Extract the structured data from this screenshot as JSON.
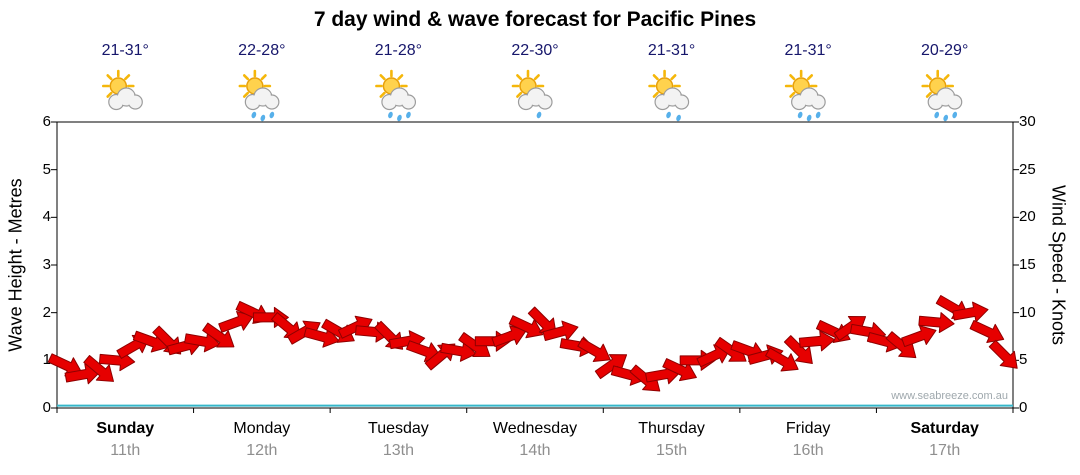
{
  "title": "7 day wind & wave forecast for Pacific Pines",
  "watermark": "www.seabreeze.com.au",
  "days": [
    {
      "name": "Sunday",
      "date": "11th",
      "temp": "21-31°",
      "icon": "sun-cloud",
      "rain_drops": 0,
      "weekend": true
    },
    {
      "name": "Monday",
      "date": "12th",
      "temp": "22-28°",
      "icon": "sun-cloud-rain",
      "rain_drops": 3,
      "weekend": false
    },
    {
      "name": "Tuesday",
      "date": "13th",
      "temp": "21-28°",
      "icon": "sun-cloud-rain",
      "rain_drops": 3,
      "weekend": false
    },
    {
      "name": "Wednesday",
      "date": "14th",
      "temp": "22-30°",
      "icon": "sun-cloud",
      "rain_drops": 1,
      "weekend": false
    },
    {
      "name": "Thursday",
      "date": "15th",
      "temp": "21-31°",
      "icon": "sun-cloud-rain",
      "rain_drops": 2,
      "weekend": false
    },
    {
      "name": "Friday",
      "date": "16th",
      "temp": "21-31°",
      "icon": "sun-cloud-rain",
      "rain_drops": 3,
      "weekend": false
    },
    {
      "name": "Saturday",
      "date": "17th",
      "temp": "20-29°",
      "icon": "sun-cloud-rain",
      "rain_drops": 3,
      "weekend": true
    }
  ],
  "chart_data": {
    "type": "line",
    "title": "7 day wind & wave forecast for Pacific Pines",
    "left_axis": {
      "label": "Wave Height - Metres",
      "min": 0,
      "max": 6,
      "ticks": [
        0,
        1,
        2,
        3,
        4,
        5,
        6
      ]
    },
    "right_axis": {
      "label": "Wind Speed - Knots",
      "min": 0,
      "max": 30,
      "ticks": [
        0,
        5,
        10,
        15,
        20,
        25,
        30
      ]
    },
    "x_axis": {
      "categories": [
        "Sunday 11th",
        "Monday 12th",
        "Tuesday 13th",
        "Wednesday 14th",
        "Thursday 15th",
        "Friday 16th",
        "Saturday 17th"
      ],
      "points_per_day": 8
    },
    "grid": false,
    "legend": "none",
    "series": [
      {
        "id": "wind",
        "name": "Wind Speed",
        "unit": "knots",
        "axis": "right",
        "style": "arrows",
        "color": "#e60000",
        "outline": "#8f0000",
        "values": [
          4.5,
          3.5,
          4,
          5,
          6.5,
          7,
          7,
          6.5,
          7,
          7.5,
          9,
          10,
          9.5,
          8.5,
          8,
          7.5,
          8,
          8.5,
          8,
          7.5,
          7,
          6,
          5.5,
          6,
          6.5,
          7,
          7.5,
          8.5,
          9,
          8,
          6.5,
          6,
          4.5,
          3.5,
          3,
          3.5,
          4,
          5,
          5.5,
          6,
          6,
          5.5,
          5,
          6,
          7,
          8,
          8.5,
          8,
          7,
          6.5,
          7.5,
          9,
          10.5,
          10,
          8,
          5.5
        ],
        "directions_deg": [
          25,
          -10,
          40,
          5,
          -30,
          20,
          45,
          -15,
          10,
          35,
          -20,
          25,
          0,
          40,
          -30,
          15,
          30,
          -25,
          5,
          45,
          -10,
          20,
          -40,
          10,
          35,
          0,
          -20,
          25,
          45,
          -15,
          10,
          30,
          -35,
          15,
          40,
          -10,
          25,
          0,
          -25,
          35,
          20,
          -15,
          30,
          45,
          -5,
          25,
          -35,
          10,
          15,
          40,
          -20,
          5,
          30,
          -10,
          25,
          45
        ]
      },
      {
        "id": "wave",
        "name": "Wave Height",
        "unit": "m",
        "axis": "left",
        "style": "line",
        "color": "#35b6c9",
        "values": [
          0.05,
          0.05,
          0.05,
          0.05,
          0.05,
          0.05,
          0.05,
          0.05
        ]
      }
    ]
  },
  "colors": {
    "temperature_text": "#16166b",
    "day_text": "#000000",
    "date_text": "#8f8f8f",
    "watermark_text": "#9fa8ad",
    "sun_fill": "#ffd24d",
    "sun_stroke": "#e8a00a",
    "sun_rays": "#f5b70a",
    "cloud_fill": "#f3f3f3",
    "cloud_stroke": "#9c9c9c",
    "rain_drop": "#57b0ea",
    "background": "#ffffff"
  }
}
